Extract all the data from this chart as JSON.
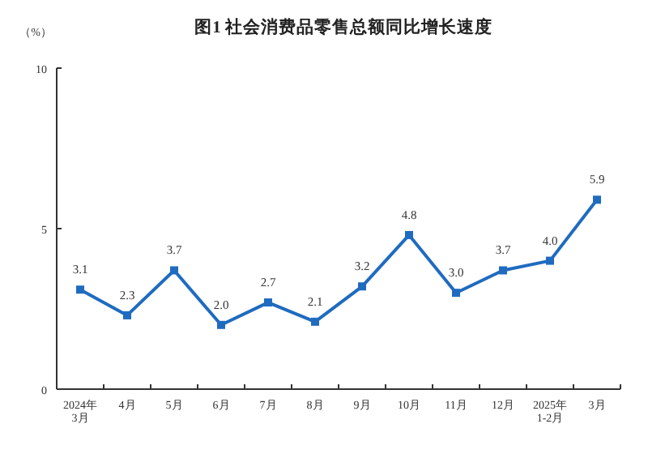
{
  "chart_data": {
    "type": "line",
    "title": "图1 社会消费品零售总额同比增长速度",
    "ylabel": "（%）",
    "categories": [
      "2024年\n3月",
      "4月",
      "5月",
      "6月",
      "7月",
      "8月",
      "9月",
      "10月",
      "11月",
      "12月",
      "2025年\n1-2月",
      "3月"
    ],
    "series": [
      {
        "color": "#1f6bc0",
        "values": [
          3.1,
          2.3,
          3.7,
          2.0,
          2.7,
          2.1,
          3.2,
          4.8,
          3.0,
          3.7,
          4.0,
          5.9
        ],
        "value_labels": [
          "3.1",
          "2.3",
          "3.7",
          "2.0",
          "2.7",
          "2.1",
          "3.2",
          "4.8",
          "3.0",
          "3.7",
          "4.0",
          "5.9"
        ]
      }
    ],
    "ylim": [
      0,
      10
    ],
    "yticks": [
      0,
      5,
      10
    ],
    "marker": "square"
  }
}
